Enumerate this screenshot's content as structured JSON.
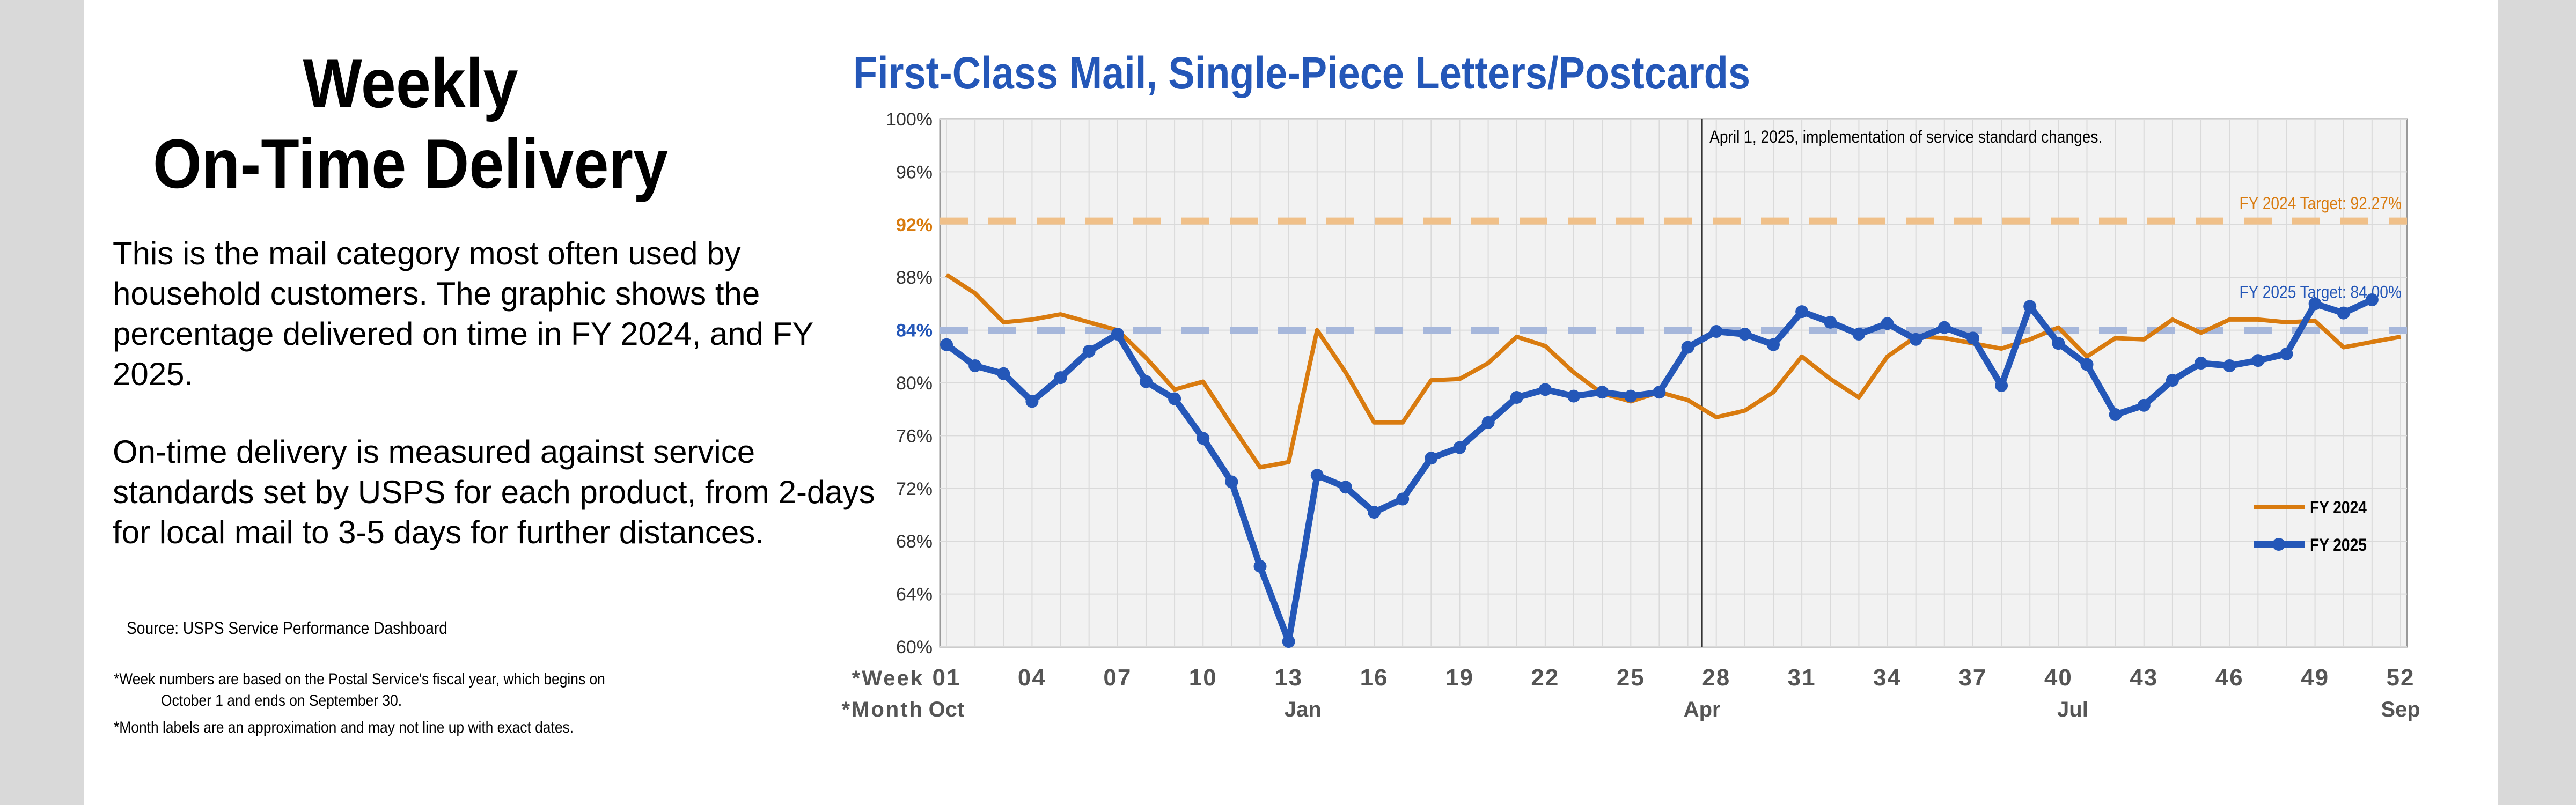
{
  "headline": {
    "line1": "Weekly",
    "line2": "On-Time Delivery"
  },
  "description": {
    "p1": "This is the mail category most often used by household customers. The graphic shows the percentage delivered on time in FY 2024, and FY 2025.",
    "p2": "On-time delivery is measured against service standards set by USPS for each product, from 2-days for local mail to 3-5 days for further distances."
  },
  "source": "Source: USPS Service Performance Dashboard",
  "footnotes": {
    "line1a": "*Week numbers are based on the Postal Service's fiscal year, which begins on",
    "line1b": "October 1 and ends on September 30.",
    "line2": "*Month labels are an approximation and may not line up with exact dates."
  },
  "colors": {
    "fy2024": "#d97b0f",
    "fy2025": "#2457b8",
    "plot_bg": "#f2f2f2",
    "grid": "#dadada",
    "title": "#2457b8"
  },
  "chart_data": {
    "type": "line",
    "title": "First-Class Mail, Single-Piece Letters/Postcards",
    "xlabel": "*Week",
    "month_label": "*Month",
    "ylim": [
      60,
      100
    ],
    "xlim": [
      1,
      52
    ],
    "grid": true,
    "legend": "bottom-right",
    "y_ticks": [
      "100%",
      "96%",
      "92%",
      "88%",
      "84%",
      "80%",
      "76%",
      "72%",
      "68%",
      "64%",
      "60%"
    ],
    "y_tick_values": [
      100,
      96,
      92,
      88,
      84,
      80,
      76,
      72,
      68,
      64,
      60
    ],
    "x_ticks": [
      "01",
      "04",
      "07",
      "10",
      "13",
      "16",
      "19",
      "22",
      "25",
      "28",
      "31",
      "34",
      "37",
      "40",
      "43",
      "46",
      "49",
      "52"
    ],
    "x_tick_values": [
      1,
      4,
      7,
      10,
      13,
      16,
      19,
      22,
      25,
      28,
      31,
      34,
      37,
      40,
      43,
      46,
      49,
      52
    ],
    "month_labels": [
      {
        "label": "Oct",
        "week": 1
      },
      {
        "label": "Jan",
        "week": 13.5
      },
      {
        "label": "Apr",
        "week": 27.5
      },
      {
        "label": "Jul",
        "week": 40.5
      },
      {
        "label": "Sep",
        "week": 52
      }
    ],
    "targets": [
      {
        "label": "FY 2024 Target: 92.27%",
        "value": 92.27,
        "color": "#f0c089"
      },
      {
        "label": "FY 2025 Target: 84.00%",
        "value": 84.0,
        "color": "#a6b7db"
      }
    ],
    "annotation": {
      "text": "April 1, 2025, implementation of service standard changes.",
      "week": 27.5
    },
    "series": [
      {
        "name": "FY 2024",
        "color": "#d97b0f",
        "markers": false,
        "x": [
          1,
          2,
          3,
          4,
          5,
          6,
          7,
          8,
          9,
          10,
          11,
          12,
          13,
          14,
          15,
          16,
          17,
          18,
          19,
          20,
          21,
          22,
          23,
          24,
          25,
          26,
          27,
          28,
          29,
          30,
          31,
          32,
          33,
          34,
          35,
          36,
          37,
          38,
          39,
          40,
          41,
          42,
          43,
          44,
          45,
          46,
          47,
          48,
          49,
          50,
          51,
          52
        ],
        "values": [
          88.2,
          86.8,
          84.6,
          84.8,
          85.2,
          84.6,
          84.0,
          81.9,
          79.5,
          80.1,
          76.8,
          73.6,
          74.0,
          84.0,
          80.8,
          77.0,
          77.0,
          80.2,
          80.3,
          81.5,
          83.5,
          82.8,
          80.8,
          79.2,
          78.6,
          79.3,
          78.7,
          77.4,
          77.9,
          79.3,
          82.0,
          80.3,
          78.9,
          82.0,
          83.5,
          83.4,
          83.0,
          82.6,
          83.3,
          84.2,
          82.0,
          83.4,
          83.3,
          84.8,
          83.8,
          84.8,
          84.8,
          84.6,
          84.7,
          82.7,
          83.1,
          83.5
        ]
      },
      {
        "name": "FY 2025",
        "color": "#2457b8",
        "markers": true,
        "x": [
          1,
          2,
          3,
          4,
          5,
          6,
          7,
          8,
          9,
          10,
          11,
          12,
          13,
          14,
          15,
          16,
          17,
          18,
          19,
          20,
          21,
          22,
          23,
          24,
          25,
          26,
          27,
          28,
          29,
          30,
          31,
          32,
          33,
          34,
          35,
          36,
          37,
          38,
          39,
          40,
          41,
          42,
          43,
          44,
          45,
          46,
          47,
          48,
          49,
          50,
          51
        ],
        "values": [
          82.9,
          81.3,
          80.7,
          78.6,
          80.4,
          82.4,
          83.7,
          80.1,
          78.8,
          75.8,
          72.5,
          66.1,
          60.4,
          73.0,
          72.1,
          70.2,
          71.2,
          74.3,
          75.1,
          77.0,
          78.9,
          79.5,
          79.0,
          79.3,
          79.0,
          79.3,
          82.7,
          83.9,
          83.7,
          82.9,
          85.4,
          84.6,
          83.7,
          84.5,
          83.3,
          84.2,
          83.4,
          79.8,
          85.8,
          83.0,
          81.4,
          77.6,
          78.3,
          80.2,
          81.5,
          81.3,
          81.7,
          82.2,
          86.0,
          85.3,
          86.3
        ]
      }
    ]
  }
}
